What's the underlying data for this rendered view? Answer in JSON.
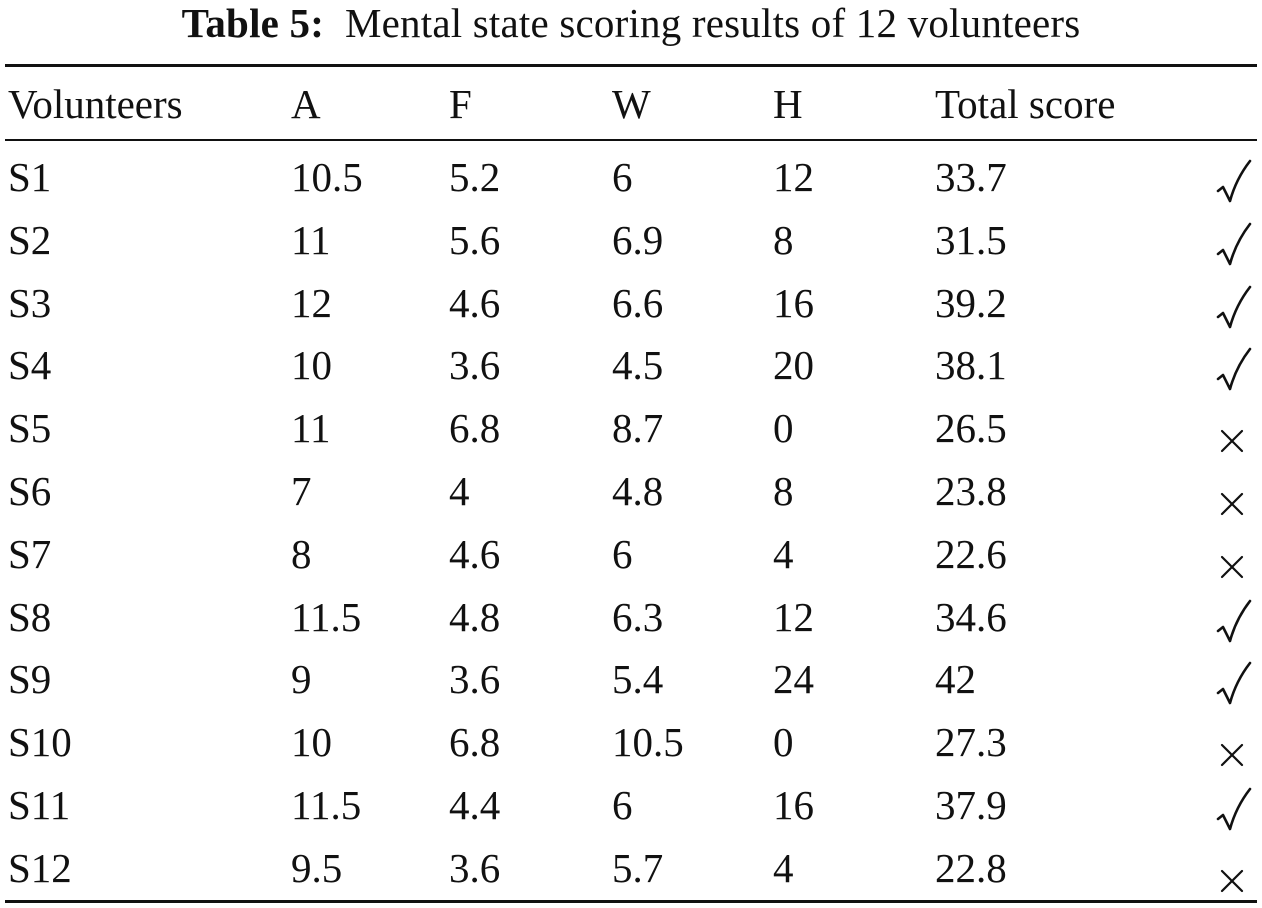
{
  "caption": {
    "label": "Table 5:",
    "text": "Mental state scoring results of 12 volunteers"
  },
  "table": {
    "headers": {
      "volunteers": "Volunteers",
      "a": "A",
      "f": "F",
      "w": "W",
      "h": "H",
      "total": "Total score"
    },
    "rows": [
      {
        "volunteer": "S1",
        "a": "10.5",
        "f": "5.2",
        "w": "6",
        "h": "12",
        "total": "33.7",
        "mark": "check-mark-icon"
      },
      {
        "volunteer": "S2",
        "a": "11",
        "f": "5.6",
        "w": "6.9",
        "h": "8",
        "total": "31.5",
        "mark": "check-mark-icon"
      },
      {
        "volunteer": "S3",
        "a": "12",
        "f": "4.6",
        "w": "6.6",
        "h": "16",
        "total": "39.2",
        "mark": "check-mark-icon"
      },
      {
        "volunteer": "S4",
        "a": "10",
        "f": "3.6",
        "w": "4.5",
        "h": "20",
        "total": "38.1",
        "mark": "check-mark-icon"
      },
      {
        "volunteer": "S5",
        "a": "11",
        "f": "6.8",
        "w": "8.7",
        "h": "0",
        "total": "26.5",
        "mark": "cross-mark-icon"
      },
      {
        "volunteer": "S6",
        "a": "7",
        "f": "4",
        "w": "4.8",
        "h": "8",
        "total": "23.8",
        "mark": "cross-mark-icon"
      },
      {
        "volunteer": "S7",
        "a": "8",
        "f": "4.6",
        "w": "6",
        "h": "4",
        "total": "22.6",
        "mark": "cross-mark-icon"
      },
      {
        "volunteer": "S8",
        "a": "11.5",
        "f": "4.8",
        "w": "6.3",
        "h": "12",
        "total": "34.6",
        "mark": "check-mark-icon"
      },
      {
        "volunteer": "S9",
        "a": "9",
        "f": "3.6",
        "w": "5.4",
        "h": "24",
        "total": "42",
        "mark": "check-mark-icon"
      },
      {
        "volunteer": "S10",
        "a": "10",
        "f": "6.8",
        "w": "10.5",
        "h": "0",
        "total": "27.3",
        "mark": "cross-mark-icon"
      },
      {
        "volunteer": "S11",
        "a": "11.5",
        "f": "4.4",
        "w": "6",
        "h": "16",
        "total": "37.9",
        "mark": "check-mark-icon"
      },
      {
        "volunteer": "S12",
        "a": "9.5",
        "f": "3.6",
        "w": "5.7",
        "h": "4",
        "total": "22.8",
        "mark": "cross-mark-icon"
      }
    ]
  }
}
